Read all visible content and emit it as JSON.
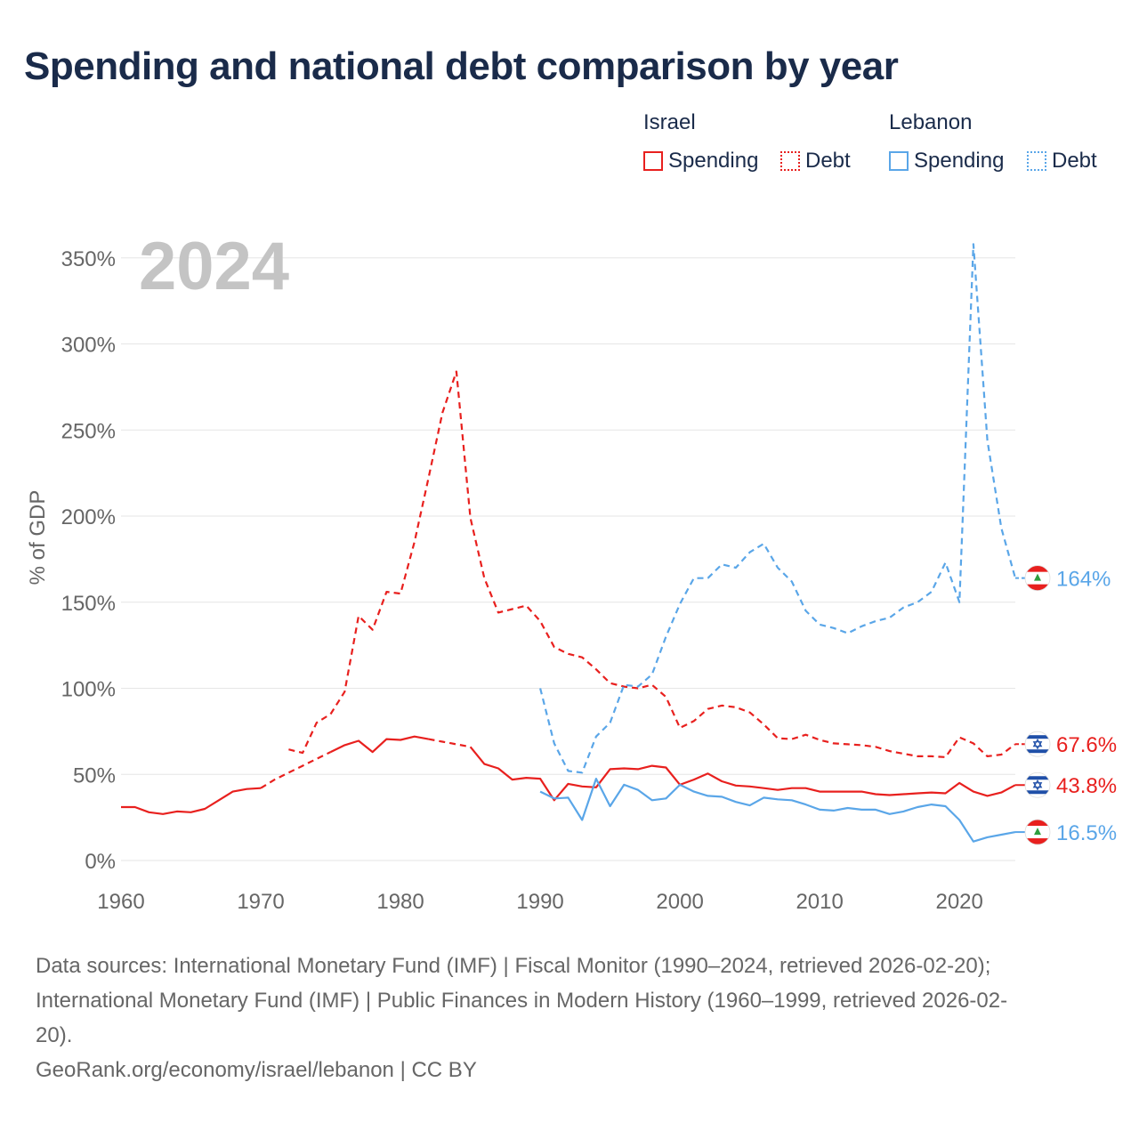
{
  "title": "Spending and national debt comparison by year",
  "legend": {
    "groups": [
      {
        "name": "Israel",
        "items": [
          {
            "label": "Spending",
            "style": "solid"
          },
          {
            "label": "Debt",
            "style": "dotted"
          }
        ],
        "color": "#e8201e"
      },
      {
        "name": "Lebanon",
        "items": [
          {
            "label": "Spending",
            "style": "solid"
          },
          {
            "label": "Debt",
            "style": "dotted"
          }
        ],
        "color": "#5aa6e8"
      }
    ]
  },
  "year_label": "2024",
  "colors": {
    "israel": "#e8201e",
    "lebanon": "#5aa6e8",
    "grid": "#e6e6e6",
    "axis_text": "#666666",
    "year": "#c4c4c4"
  },
  "chart_data": {
    "type": "line",
    "title": "Spending and national debt comparison by year",
    "xlabel": "",
    "ylabel": "% of GDP",
    "xlim": [
      1960,
      2024
    ],
    "ylim": [
      0,
      360
    ],
    "x_ticks": [
      1960,
      1970,
      1980,
      1990,
      2000,
      2010,
      2020
    ],
    "y_ticks": [
      0,
      50,
      100,
      150,
      200,
      250,
      300,
      350
    ],
    "y_tick_labels": [
      "0%",
      "50%",
      "100%",
      "150%",
      "200%",
      "250%",
      "300%",
      "350%"
    ],
    "series": [
      {
        "name": "Israel Spending",
        "country": "Israel",
        "color": "#e8201e",
        "dash": "solid",
        "end_label": "43.8%",
        "flag": "israel",
        "segments": [
          {
            "dash": "solid",
            "points": [
              [
                1960,
                31
              ],
              [
                1961,
                31
              ],
              [
                1962,
                28
              ],
              [
                1963,
                27
              ],
              [
                1964,
                28.5
              ],
              [
                1965,
                28
              ],
              [
                1966,
                30
              ],
              [
                1967,
                35
              ],
              [
                1968,
                40
              ],
              [
                1969,
                41.5
              ],
              [
                1970,
                42
              ]
            ]
          },
          {
            "dash": "dashed",
            "points": [
              [
                1970,
                42
              ],
              [
                1971,
                47
              ],
              [
                1972,
                51
              ],
              [
                1973,
                55
              ],
              [
                1974,
                59
              ],
              [
                1975,
                63
              ]
            ]
          },
          {
            "dash": "solid",
            "points": [
              [
                1975,
                63
              ],
              [
                1976,
                67
              ],
              [
                1977,
                69.5
              ],
              [
                1978,
                63
              ],
              [
                1979,
                70.5
              ],
              [
                1980,
                70
              ],
              [
                1981,
                72
              ],
              [
                1982,
                70.5
              ]
            ]
          },
          {
            "dash": "dashed",
            "points": [
              [
                1982,
                70.5
              ],
              [
                1983,
                69
              ],
              [
                1984,
                67.5
              ],
              [
                1985,
                66
              ]
            ]
          },
          {
            "dash": "solid",
            "points": [
              [
                1985,
                66
              ],
              [
                1986,
                56
              ],
              [
                1987,
                53.5
              ],
              [
                1988,
                47
              ],
              [
                1989,
                48
              ],
              [
                1990,
                47.5
              ],
              [
                1991,
                35
              ],
              [
                1992,
                44.5
              ],
              [
                1993,
                43
              ],
              [
                1994,
                42.5
              ],
              [
                1995,
                53
              ],
              [
                1996,
                53.5
              ],
              [
                1997,
                53
              ],
              [
                1998,
                55
              ],
              [
                1999,
                54
              ],
              [
                2000,
                44
              ],
              [
                2001,
                47
              ],
              [
                2002,
                50.5
              ],
              [
                2003,
                46
              ],
              [
                2004,
                43.5
              ],
              [
                2005,
                43
              ],
              [
                2006,
                42
              ],
              [
                2007,
                41
              ],
              [
                2008,
                42
              ],
              [
                2009,
                42
              ],
              [
                2010,
                40
              ],
              [
                2011,
                40
              ],
              [
                2012,
                40
              ],
              [
                2013,
                40
              ],
              [
                2014,
                38.5
              ],
              [
                2015,
                38
              ],
              [
                2016,
                38.5
              ],
              [
                2017,
                39
              ],
              [
                2018,
                39.5
              ],
              [
                2019,
                39
              ],
              [
                2020,
                45
              ],
              [
                2021,
                40
              ],
              [
                2022,
                37.5
              ],
              [
                2023,
                39.5
              ],
              [
                2024,
                43.8
              ]
            ]
          }
        ]
      },
      {
        "name": "Israel Debt",
        "country": "Israel",
        "color": "#e8201e",
        "dash": "dashed",
        "end_label": "67.6%",
        "flag": "israel",
        "segments": [
          {
            "dash": "dashed",
            "points": [
              [
                1972,
                64.5
              ],
              [
                1973,
                62.5
              ],
              [
                1974,
                80
              ],
              [
                1975,
                85
              ],
              [
                1976,
                98
              ],
              [
                1977,
                142
              ],
              [
                1978,
                134
              ],
              [
                1979,
                156
              ],
              [
                1980,
                155
              ],
              [
                1981,
                185
              ],
              [
                1982,
                222
              ],
              [
                1983,
                260
              ],
              [
                1984,
                284
              ],
              [
                1985,
                199
              ],
              [
                1986,
                164
              ],
              [
                1987,
                144
              ],
              [
                1988,
                146
              ],
              [
                1989,
                148
              ],
              [
                1990,
                139
              ],
              [
                1991,
                124
              ],
              [
                1992,
                120
              ],
              [
                1993,
                118
              ],
              [
                1994,
                111
              ],
              [
                1995,
                103
              ],
              [
                1996,
                101
              ],
              [
                1997,
                100
              ],
              [
                1998,
                102
              ],
              [
                1999,
                95
              ],
              [
                2000,
                77
              ],
              [
                2001,
                81
              ],
              [
                2002,
                88
              ],
              [
                2003,
                90
              ],
              [
                2004,
                89
              ],
              [
                2005,
                86
              ],
              [
                2006,
                79
              ],
              [
                2007,
                71
              ],
              [
                2008,
                70.5
              ],
              [
                2009,
                73
              ],
              [
                2010,
                70
              ],
              [
                2011,
                68
              ],
              [
                2012,
                67.5
              ],
              [
                2013,
                67
              ],
              [
                2014,
                66
              ],
              [
                2015,
                63.5
              ],
              [
                2016,
                62
              ],
              [
                2017,
                60.5
              ],
              [
                2018,
                60.5
              ],
              [
                2019,
                60
              ],
              [
                2020,
                71.5
              ],
              [
                2021,
                68
              ],
              [
                2022,
                60.5
              ],
              [
                2023,
                61.5
              ],
              [
                2024,
                67.6
              ]
            ]
          }
        ]
      },
      {
        "name": "Lebanon Spending",
        "country": "Lebanon",
        "color": "#5aa6e8",
        "dash": "solid",
        "end_label": "16.5%",
        "flag": "lebanon",
        "segments": [
          {
            "dash": "solid",
            "points": [
              [
                1990,
                40
              ],
              [
                1991,
                36
              ],
              [
                1992,
                36.5
              ],
              [
                1993,
                23.5
              ],
              [
                1994,
                47.5
              ],
              [
                1995,
                31.5
              ],
              [
                1996,
                44
              ],
              [
                1997,
                41
              ],
              [
                1998,
                35
              ],
              [
                1999,
                36
              ],
              [
                2000,
                44
              ],
              [
                2001,
                40
              ],
              [
                2002,
                37.5
              ],
              [
                2003,
                37
              ],
              [
                2004,
                34
              ],
              [
                2005,
                32
              ],
              [
                2006,
                36.5
              ],
              [
                2007,
                35.5
              ],
              [
                2008,
                35
              ],
              [
                2009,
                32.5
              ],
              [
                2010,
                29.5
              ],
              [
                2011,
                29
              ],
              [
                2012,
                30.5
              ],
              [
                2013,
                29.5
              ],
              [
                2014,
                29.5
              ],
              [
                2015,
                27
              ],
              [
                2016,
                28.5
              ],
              [
                2017,
                31
              ],
              [
                2018,
                32.5
              ],
              [
                2019,
                31.5
              ],
              [
                2020,
                23.5
              ],
              [
                2021,
                11
              ],
              [
                2022,
                13.5
              ],
              [
                2023,
                15
              ],
              [
                2024,
                16.5
              ]
            ]
          }
        ]
      },
      {
        "name": "Lebanon Debt",
        "country": "Lebanon",
        "color": "#5aa6e8",
        "dash": "dashed",
        "end_label": "164%",
        "flag": "lebanon",
        "segments": [
          {
            "dash": "dashed",
            "points": [
              [
                1990,
                100
              ],
              [
                1991,
                68
              ],
              [
                1992,
                52
              ],
              [
                1993,
                51
              ],
              [
                1994,
                72
              ],
              [
                1995,
                80
              ],
              [
                1996,
                102
              ],
              [
                1997,
                101
              ],
              [
                1998,
                108
              ],
              [
                1999,
                130
              ],
              [
                2000,
                149
              ],
              [
                2001,
                164
              ],
              [
                2002,
                164
              ],
              [
                2003,
                172
              ],
              [
                2004,
                170
              ],
              [
                2005,
                179
              ],
              [
                2006,
                184
              ],
              [
                2007,
                170
              ],
              [
                2008,
                162
              ],
              [
                2009,
                145
              ],
              [
                2010,
                137
              ],
              [
                2011,
                135
              ],
              [
                2012,
                132
              ],
              [
                2013,
                136
              ],
              [
                2014,
                139
              ],
              [
                2015,
                141
              ],
              [
                2016,
                147
              ],
              [
                2017,
                150
              ],
              [
                2018,
                156
              ],
              [
                2019,
                173
              ],
              [
                2020,
                150
              ],
              [
                2021,
                358
              ],
              [
                2022,
                244
              ],
              [
                2023,
                193
              ],
              [
                2024,
                164
              ]
            ]
          }
        ]
      }
    ]
  },
  "sources": {
    "line1": "Data sources: International Monetary Fund (IMF) | Fiscal Monitor (1990–2024, retrieved 2026-02-20);",
    "line2": "International Monetary Fund (IMF) | Public Finances in Modern History (1960–1999, retrieved 2026-02-",
    "line3": "20).",
    "credit": "GeoRank.org/economy/israel/lebanon | CC BY"
  }
}
